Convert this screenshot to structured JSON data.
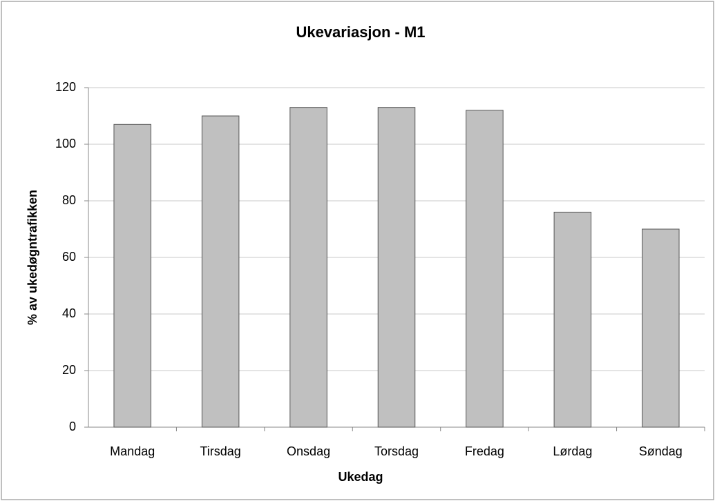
{
  "chart_data": {
    "type": "bar",
    "title": "Ukevariasjon - M1",
    "x_label": "Ukedag",
    "y_label": "% av ukedøgntrafikken",
    "categories": [
      "Mandag",
      "Tirsdag",
      "Onsdag",
      "Torsdag",
      "Fredag",
      "Lørdag",
      "Søndag"
    ],
    "values": [
      107,
      110,
      113,
      113,
      112,
      76,
      70
    ],
    "color": "#c0c0c0",
    "ylim": [
      0,
      120
    ],
    "yticks": [
      0,
      20,
      40,
      60,
      80,
      100,
      120
    ],
    "grid": true
  }
}
